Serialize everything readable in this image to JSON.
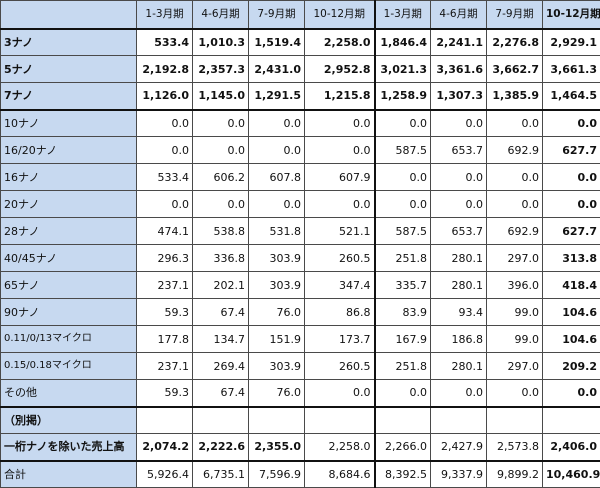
{
  "columns": [
    "1-3月期",
    "4-6月期",
    "7-9月期",
    "10-12月期",
    "1-3月期",
    "4-6月期",
    "7-9月期",
    "10-12月期"
  ],
  "rows": [
    {
      "label": "3ナノ",
      "values": [
        "533.4",
        "1,010.3",
        "1,519.4",
        "2,258.0",
        "1,846.4",
        "2,241.1",
        "2,276.8",
        "2,929.1"
      ]
    },
    {
      "label": "5ナノ",
      "values": [
        "2,192.8",
        "2,357.3",
        "2,431.0",
        "2,952.8",
        "3,021.3",
        "3,361.6",
        "3,662.7",
        "3,661.3"
      ]
    },
    {
      "label": "7ナノ",
      "values": [
        "1,126.0",
        "1,145.0",
        "1,291.5",
        "1,215.8",
        "1,258.9",
        "1,307.3",
        "1,385.9",
        "1,464.5"
      ]
    },
    {
      "label": "10ナノ",
      "values": [
        "0.0",
        "0.0",
        "0.0",
        "0.0",
        "0.0",
        "0.0",
        "0.0",
        "0.0"
      ]
    },
    {
      "label": "16/20ナノ",
      "values": [
        "0.0",
        "0.0",
        "0.0",
        "0.0",
        "587.5",
        "653.7",
        "692.9",
        "627.7"
      ]
    },
    {
      "label": "16ナノ",
      "values": [
        "533.4",
        "606.2",
        "607.8",
        "607.9",
        "0.0",
        "0.0",
        "0.0",
        "0.0"
      ]
    },
    {
      "label": "20ナノ",
      "values": [
        "0.0",
        "0.0",
        "0.0",
        "0.0",
        "0.0",
        "0.0",
        "0.0",
        "0.0"
      ]
    },
    {
      "label": "28ナノ",
      "values": [
        "474.1",
        "538.8",
        "531.8",
        "521.1",
        "587.5",
        "653.7",
        "692.9",
        "627.7"
      ]
    },
    {
      "label": "40/45ナノ",
      "values": [
        "296.3",
        "336.8",
        "303.9",
        "260.5",
        "251.8",
        "280.1",
        "297.0",
        "313.8"
      ]
    },
    {
      "label": "65ナノ",
      "values": [
        "237.1",
        "202.1",
        "303.9",
        "347.4",
        "335.7",
        "280.1",
        "396.0",
        "418.4"
      ]
    },
    {
      "label": "90ナノ",
      "values": [
        "59.3",
        "67.4",
        "76.0",
        "86.8",
        "83.9",
        "93.4",
        "99.0",
        "104.6"
      ]
    },
    {
      "label": "0.11/0/13マイクロ",
      "values": [
        "177.8",
        "134.7",
        "151.9",
        "173.7",
        "167.9",
        "186.8",
        "99.0",
        "104.6"
      ]
    },
    {
      "label": "0.15/0.18マイクロ",
      "values": [
        "237.1",
        "269.4",
        "303.9",
        "260.5",
        "251.8",
        "280.1",
        "297.0",
        "209.2"
      ]
    },
    {
      "label": "その他",
      "values": [
        "59.3",
        "67.4",
        "76.0",
        "0.0",
        "0.0",
        "0.0",
        "0.0",
        "0.0"
      ]
    }
  ],
  "excluding": {
    "note": "（別掲）",
    "label": "一桁ナノを除いた売上高",
    "values": [
      "2,074.2",
      "2,222.6",
      "2,355.0",
      "2,258.0",
      "2,266.0",
      "2,427.9",
      "2,573.8",
      "2,406.0"
    ]
  },
  "total": {
    "label": "合計",
    "values": [
      "5,926.4",
      "6,735.1",
      "7,596.9",
      "8,684.6",
      "8,392.5",
      "9,337.9",
      "9,899.2",
      "10,460.9"
    ]
  },
  "colors": {
    "header_fill": "#c7d9f0",
    "border": "#4a4a4a"
  }
}
